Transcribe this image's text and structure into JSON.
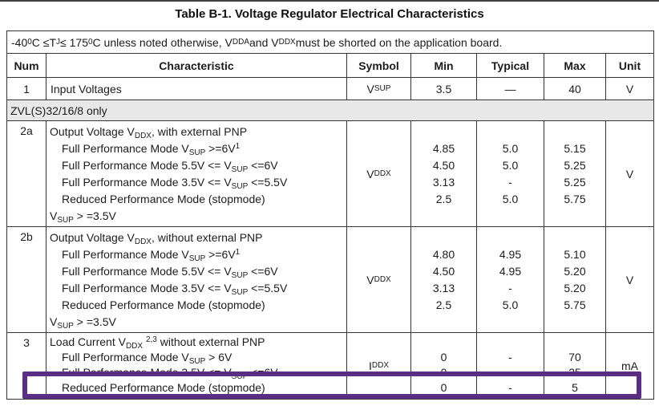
{
  "title": "Table B-1. Voltage Regulator Electrical Characteristics",
  "highlight_color": "#5c2d85",
  "table": {
    "condition": "-40^0^C ≤T~J~ ≤ 175^0^C unless noted otherwise, V~DDA~ and V~DDX~ must be shorted on the application board.",
    "columns": [
      "Num",
      "Characteristic",
      "Symbol",
      "Min",
      "Typical",
      "Max",
      "Unit"
    ],
    "row1": {
      "num": "1",
      "characteristic": "Input Voltages",
      "symbol": "V~SUP~",
      "min": "3.5",
      "typical": "—",
      "max": "40",
      "unit": "V"
    },
    "section": "ZVL(S)32/16/8 only",
    "row2a": {
      "num": "2a",
      "lines": [
        "Output Voltage V~DDX~, with external PNP",
        "Full Performance Mode V~SUP~ >=6V^1^",
        "Full Performance Mode 5.5V <= V~SUP~ <=6V",
        "Full Performance Mode 3.5V <= V~SUP~ <=5.5V",
        "Reduced Performance Mode (stopmode)",
        "V~SUP~ > =3.5V"
      ],
      "symbol": "V~DDX~",
      "min": [
        "4.85",
        "4.50",
        "3.13",
        "2.5"
      ],
      "typical": [
        "5.0",
        "5.0",
        "-",
        "5.0"
      ],
      "max": [
        "5.15",
        "5.25",
        "5.25",
        "5.75"
      ],
      "unit": "V"
    },
    "row2b": {
      "num": "2b",
      "lines": [
        "Output Voltage V~DDX~, without external PNP",
        "Full Performance Mode V~SUP~ >=6V^1^",
        "Full Performance Mode 5.5V <= V~SUP~ <=6V",
        "Full Performance Mode 3.5V <= V~SUP~ <=5.5V",
        "Reduced Performance Mode (stopmode)",
        "V~SUP~ > =3.5V"
      ],
      "symbol": "V~DDX~",
      "min": [
        "4.80",
        "4.50",
        "3.13",
        "2.5"
      ],
      "typical": [
        "4.95",
        "4.95",
        "-",
        "5.0"
      ],
      "max": [
        "5.10",
        "5.20",
        "5.20",
        "5.75"
      ],
      "unit": "V"
    },
    "row3": {
      "num": "3",
      "lines": [
        "Load Current V~DDX~ ^2,3^ without external PNP",
        "Full Performance Mode V~SUP~ > 6V",
        "Full Performance Mode 3.5V <= V~SUP~ <=6V",
        "Reduced Performance Mode (stopmode)"
      ],
      "symbol": "I~DDX~",
      "min": [
        "0",
        "0",
        "0"
      ],
      "typical": [
        "-",
        "-",
        "-"
      ],
      "max": [
        "70",
        "25",
        "5"
      ],
      "unit": "mA"
    }
  }
}
